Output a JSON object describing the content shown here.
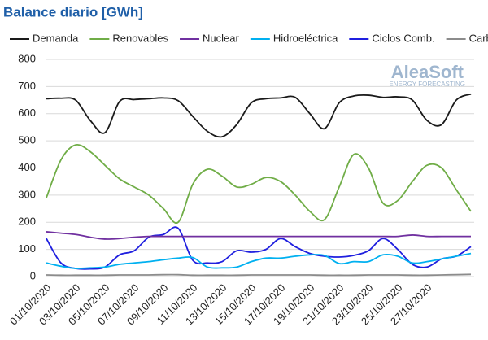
{
  "chart_data": {
    "type": "line",
    "title": "Balance diario [GWh]",
    "logo": {
      "name": "AleaSoft",
      "tagline": "ENERGY FORECASTING"
    },
    "categories": [
      "01/10/2020",
      null,
      "03/10/2020",
      null,
      "05/10/2020",
      null,
      "07/10/2020",
      null,
      "09/10/2020",
      null,
      "11/10/2020",
      null,
      "13/10/2020",
      null,
      "15/10/2020",
      null,
      "17/10/2020",
      null,
      "19/10/2020",
      null,
      "21/10/2020",
      null,
      "23/10/2020",
      null,
      "25/10/2020",
      null,
      "27/10/2020",
      null,
      null,
      null
    ],
    "ylim": [
      0,
      800
    ],
    "yticks": [
      0,
      100,
      200,
      300,
      400,
      500,
      600,
      700,
      800
    ],
    "grid": true,
    "legend": "top",
    "series": [
      {
        "name": "Demanda",
        "color": "#1a1a1a",
        "values": [
          655,
          657,
          650,
          575,
          530,
          645,
          652,
          655,
          658,
          648,
          590,
          535,
          515,
          560,
          640,
          655,
          658,
          660,
          600,
          545,
          640,
          665,
          668,
          660,
          662,
          650,
          575,
          560,
          650,
          672
        ]
      },
      {
        "name": "Renovables",
        "color": "#70ad47",
        "values": [
          290,
          430,
          485,
          460,
          410,
          360,
          330,
          300,
          250,
          200,
          340,
          395,
          370,
          330,
          340,
          365,
          350,
          300,
          240,
          210,
          330,
          450,
          400,
          270,
          280,
          350,
          410,
          400,
          320,
          240
        ]
      },
      {
        "name": "Nuclear",
        "color": "#7030a0",
        "values": [
          165,
          160,
          155,
          145,
          138,
          140,
          145,
          148,
          148,
          148,
          148,
          148,
          148,
          148,
          148,
          148,
          148,
          148,
          148,
          148,
          148,
          148,
          148,
          148,
          148,
          153,
          148,
          148,
          148,
          148
        ]
      },
      {
        "name": "Hidroeléctrica",
        "color": "#00b0f0",
        "values": [
          50,
          38,
          30,
          32,
          35,
          45,
          50,
          55,
          62,
          68,
          70,
          35,
          32,
          35,
          55,
          68,
          68,
          75,
          80,
          78,
          48,
          55,
          55,
          80,
          75,
          50,
          55,
          65,
          75,
          85
        ]
      },
      {
        "name": "Ciclos Comb.",
        "color": "#1f1fdf",
        "values": [
          140,
          50,
          30,
          28,
          35,
          80,
          95,
          145,
          155,
          178,
          60,
          50,
          55,
          95,
          90,
          100,
          140,
          110,
          85,
          75,
          72,
          78,
          95,
          140,
          100,
          45,
          35,
          65,
          75,
          110
        ]
      },
      {
        "name": "Carbón",
        "color": "#8c8c8c",
        "values": [
          6,
          5,
          5,
          5,
          5,
          6,
          6,
          6,
          7,
          7,
          5,
          5,
          5,
          5,
          6,
          6,
          6,
          6,
          6,
          5,
          5,
          5,
          6,
          6,
          6,
          5,
          5,
          6,
          7,
          8
        ]
      }
    ]
  }
}
